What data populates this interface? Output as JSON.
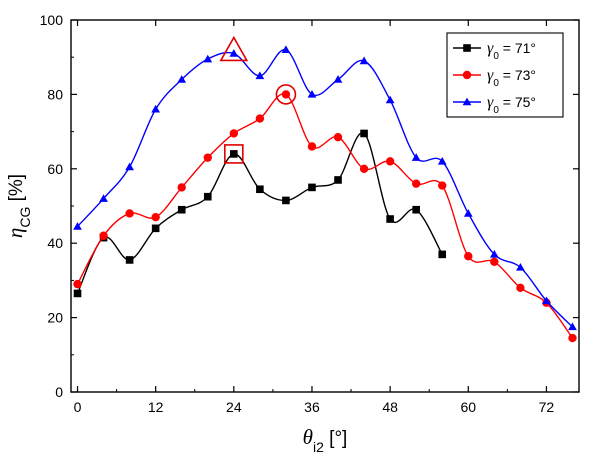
{
  "chart_data": {
    "type": "line",
    "xlabel": "θ_i2 [°]",
    "ylabel": "η_CG [%]",
    "xlabel_parts": {
      "base": "θ",
      "sub": "i2",
      "unit": " [°]"
    },
    "ylabel_parts": {
      "base": "η",
      "sub": "CG",
      "unit": " [%]"
    },
    "xlim": [
      -1,
      77
    ],
    "ylim": [
      0,
      100
    ],
    "xticks": [
      0,
      12,
      24,
      36,
      48,
      60,
      72
    ],
    "yticks": [
      0,
      20,
      40,
      60,
      80,
      100
    ],
    "grid": false,
    "legend_position": "top-right",
    "series": [
      {
        "name": "γ0 = 71°",
        "legend_parts": {
          "base": "γ",
          "sub": "0",
          "rest": " = 71°"
        },
        "color": "#000000",
        "marker": "square",
        "x": [
          0,
          4,
          8,
          12,
          16,
          20,
          24,
          28,
          32,
          36,
          40,
          44,
          48,
          52,
          56
        ],
        "y": [
          26.5,
          41.5,
          35.5,
          44,
          49,
          52.5,
          64,
          54.5,
          51.5,
          55,
          57,
          69.5,
          46.5,
          49,
          37
        ]
      },
      {
        "name": "γ0 = 73°",
        "legend_parts": {
          "base": "γ",
          "sub": "0",
          "rest": " = 73°"
        },
        "color": "#ff0000",
        "marker": "circle",
        "x": [
          0,
          4,
          8,
          12,
          16,
          20,
          24,
          28,
          32,
          36,
          40,
          44,
          48,
          52,
          56,
          60,
          64,
          68,
          72,
          76
        ],
        "y": [
          29,
          42,
          48,
          47,
          55,
          63,
          69.5,
          73.5,
          80,
          66,
          68.5,
          60,
          62,
          56,
          55.5,
          36.5,
          35,
          28,
          24,
          14.5
        ]
      },
      {
        "name": "γ0 = 75°",
        "legend_parts": {
          "base": "γ",
          "sub": "0",
          "rest": " = 75°"
        },
        "color": "#0000ff",
        "marker": "triangle",
        "x": [
          0,
          4,
          8,
          12,
          16,
          20,
          24,
          28,
          32,
          36,
          40,
          44,
          48,
          52,
          56,
          60,
          64,
          68,
          72,
          76
        ],
        "y": [
          44.5,
          52,
          60.5,
          76,
          84,
          89.5,
          91,
          85,
          92,
          80,
          84,
          89,
          78.5,
          63,
          62,
          48,
          37,
          33.5,
          24.5,
          17.5
        ]
      }
    ],
    "highlights": [
      {
        "series": "γ0 = 71°",
        "shape": "square",
        "x": 24,
        "y": 64,
        "color": "#e00000"
      },
      {
        "series": "γ0 = 73°",
        "shape": "circle",
        "x": 32,
        "y": 80,
        "color": "#e00000"
      },
      {
        "series": "γ0 = 75°",
        "shape": "triangle",
        "x": 24,
        "y": 91,
        "color": "#e00000"
      }
    ]
  }
}
